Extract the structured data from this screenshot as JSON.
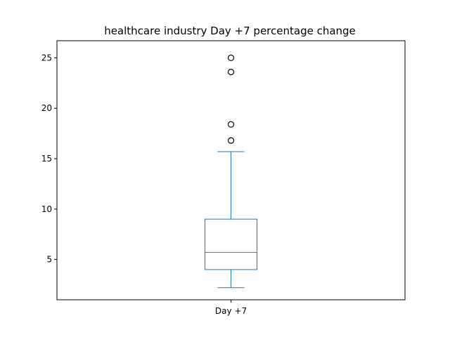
{
  "chart_data": {
    "type": "box",
    "title": "healthcare industry Day +7 percentage change",
    "categories": [
      "Day +7"
    ],
    "yticks": [
      5,
      10,
      15,
      20,
      25
    ],
    "ylim": [
      1.0,
      26.7
    ],
    "grid": false,
    "series": [
      {
        "whisker_low": 2.2,
        "q1": 4.0,
        "median": 5.7,
        "q3": 9.0,
        "whisker_high": 15.7,
        "outliers": [
          16.8,
          18.4,
          23.6,
          25.0
        ]
      }
    ],
    "colors": {
      "box": "#1f77b4",
      "median": "#2ca02c",
      "outlier_edge": "#000000"
    }
  }
}
